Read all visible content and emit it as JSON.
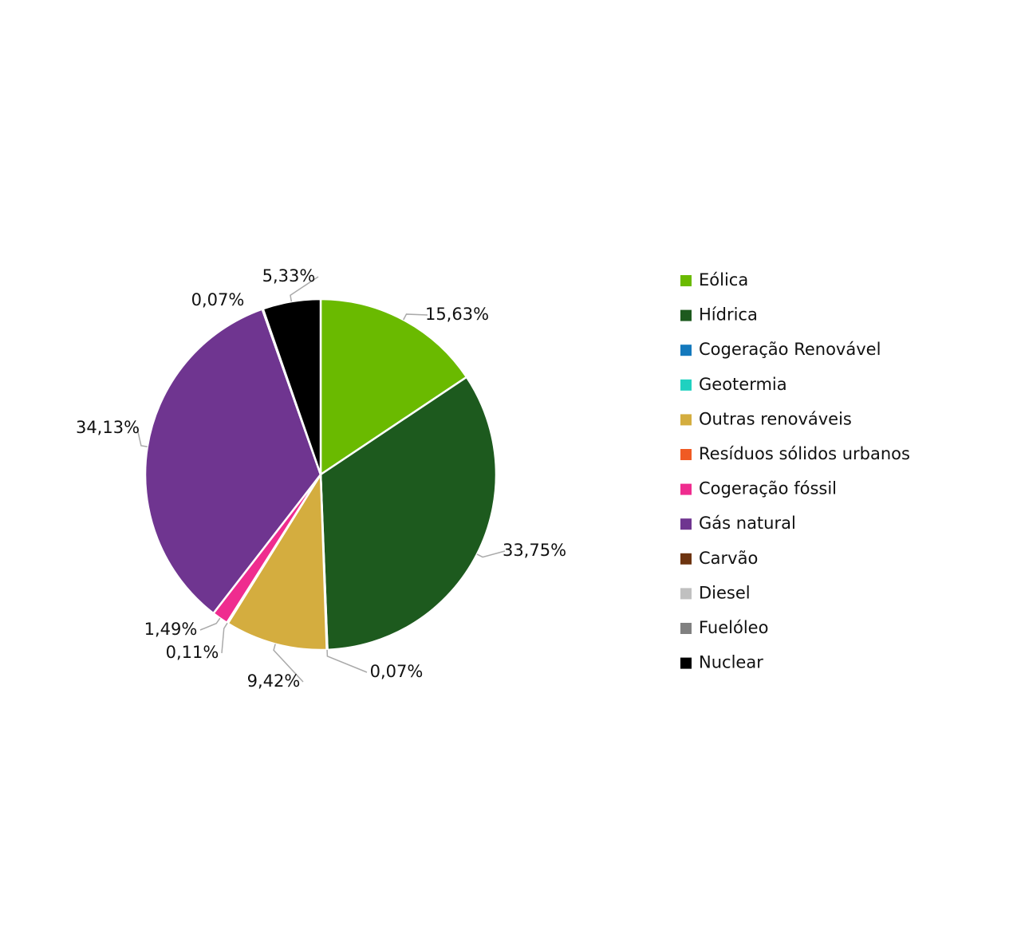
{
  "chart_data": {
    "type": "pie",
    "categories": [
      "Eólica",
      "Hídrica",
      "Cogeração Renovável",
      "Geotermia",
      "Outras renováveis",
      "Resíduos sólidos urbanos",
      "Cogeração fóssil",
      "Gás natural",
      "Carvão",
      "Diesel",
      "Fuelóleo",
      "Nuclear"
    ],
    "values": [
      15.63,
      33.75,
      0.07,
      0,
      9.42,
      0.11,
      1.49,
      34.13,
      0,
      0,
      0.07,
      5.33
    ],
    "value_labels": [
      "15,63%",
      "33,75%",
      "0,07%",
      null,
      "9,42%",
      "0,11%",
      "1,49%",
      "34,13%",
      null,
      null,
      "0,07%",
      "5,33%"
    ],
    "colors": [
      "#6aba00",
      "#1d5a1e",
      "#1479bd",
      "#1fd1c0",
      "#d4ad3f",
      "#f05a23",
      "#ef2c8f",
      "#6f3590",
      "#6d3410",
      "#c0c0c0",
      "#808080",
      "#000000"
    ],
    "legend": "right"
  }
}
